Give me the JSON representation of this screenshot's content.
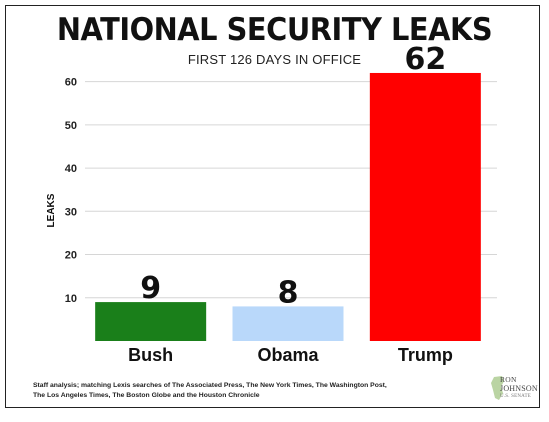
{
  "header": {
    "title": "NATIONAL SECURITY LEAKS",
    "subtitle": "FIRST 126 DAYS IN OFFICE"
  },
  "chart_data": {
    "type": "bar",
    "title": "NATIONAL SECURITY LEAKS",
    "subtitle": "FIRST 126 DAYS IN OFFICE",
    "categories": [
      "Bush",
      "Obama",
      "Trump"
    ],
    "values": [
      9,
      8,
      62
    ],
    "data_labels": [
      "9",
      "8",
      "62"
    ],
    "colors": [
      "#1a7f1a",
      "#b9d8fa",
      "#ff0000"
    ],
    "xlabel": "",
    "ylabel": "LEAKS",
    "ylim": [
      0,
      65
    ],
    "yticks": [
      10,
      20,
      30,
      40,
      50,
      60
    ],
    "ytick_labels": [
      "10",
      "20",
      "30",
      "40",
      "50",
      "60"
    ],
    "grid": true,
    "legend": "none"
  },
  "footer": {
    "source_line1": "Staff analysis; matching Lexis searches of The Associated Press, The New York Times, The Washington Post,",
    "source_line2": "The Los Angeles Times, The Boston Globe and the Houston Chronicle"
  },
  "logo": {
    "line1": "RON",
    "line2": "JOHNSON",
    "line3": "U.S. SENATE",
    "color": "#8aa66a"
  }
}
